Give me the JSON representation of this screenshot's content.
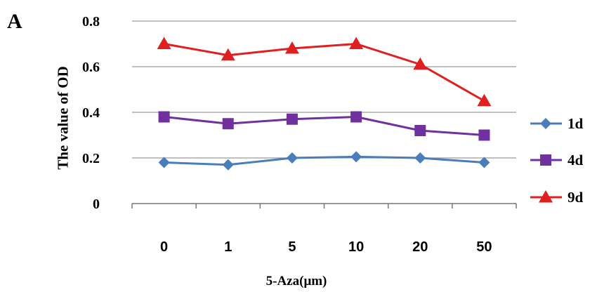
{
  "panel_label": "A",
  "chart_data": {
    "type": "line",
    "title": "",
    "xlabel": "5-Aza(μm)",
    "ylabel": "The value of OD",
    "categories": [
      "0",
      "1",
      "5",
      "10",
      "20",
      "50"
    ],
    "ylim": [
      0,
      0.8
    ],
    "yticks": [
      "0",
      "0.2",
      "0.4",
      "0.6",
      "0.8"
    ],
    "grid": "horizontal",
    "legend_position": "right",
    "series": [
      {
        "name": "1d",
        "color": "#4a7ebb",
        "marker": "diamond",
        "values": [
          0.18,
          0.17,
          0.2,
          0.205,
          0.2,
          0.18
        ]
      },
      {
        "name": "4d",
        "color": "#7030a0",
        "marker": "square",
        "values": [
          0.38,
          0.35,
          0.37,
          0.38,
          0.32,
          0.3
        ]
      },
      {
        "name": "9d",
        "color": "#e02020",
        "marker": "triangle",
        "values": [
          0.7,
          0.65,
          0.68,
          0.7,
          0.61,
          0.45
        ]
      }
    ]
  }
}
